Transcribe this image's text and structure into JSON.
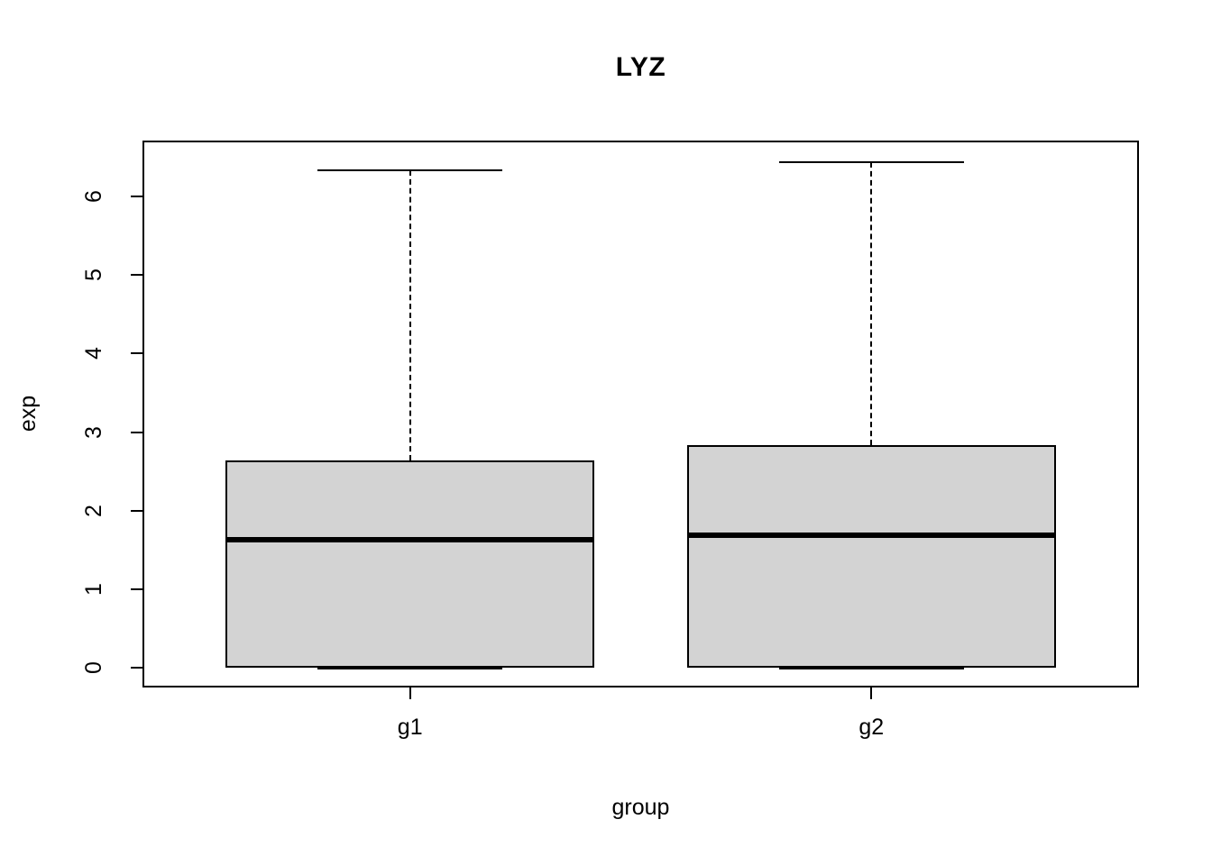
{
  "figure": {
    "title": "LYZ",
    "background": "#ffffff"
  },
  "chart_data": {
    "type": "boxplot",
    "title": "LYZ",
    "xlabel": "group",
    "ylabel": "exp",
    "categories": [
      "g1",
      "g2"
    ],
    "series": [
      {
        "name": "g1",
        "x": 1,
        "whisker_low": 0,
        "q1": 0,
        "median": 1.63,
        "q3": 2.64,
        "whisker_high": 6.33
      },
      {
        "name": "g2",
        "x": 2,
        "whisker_low": 0,
        "q1": 0,
        "median": 1.69,
        "q3": 2.83,
        "whisker_high": 6.44
      }
    ],
    "y_ticks": [
      "0",
      "1",
      "2",
      "3",
      "4",
      "5",
      "6"
    ],
    "y_tick_values": [
      0,
      1,
      2,
      3,
      4,
      5,
      6
    ],
    "ylim": [
      -0.25,
      6.71
    ],
    "xlim": [
      0.42,
      2.58
    ],
    "box_width": 0.8,
    "staple_width": 0.4,
    "grid": false,
    "legend": "none",
    "box_fill": "#D3D3D3",
    "line_color": "#000000"
  }
}
